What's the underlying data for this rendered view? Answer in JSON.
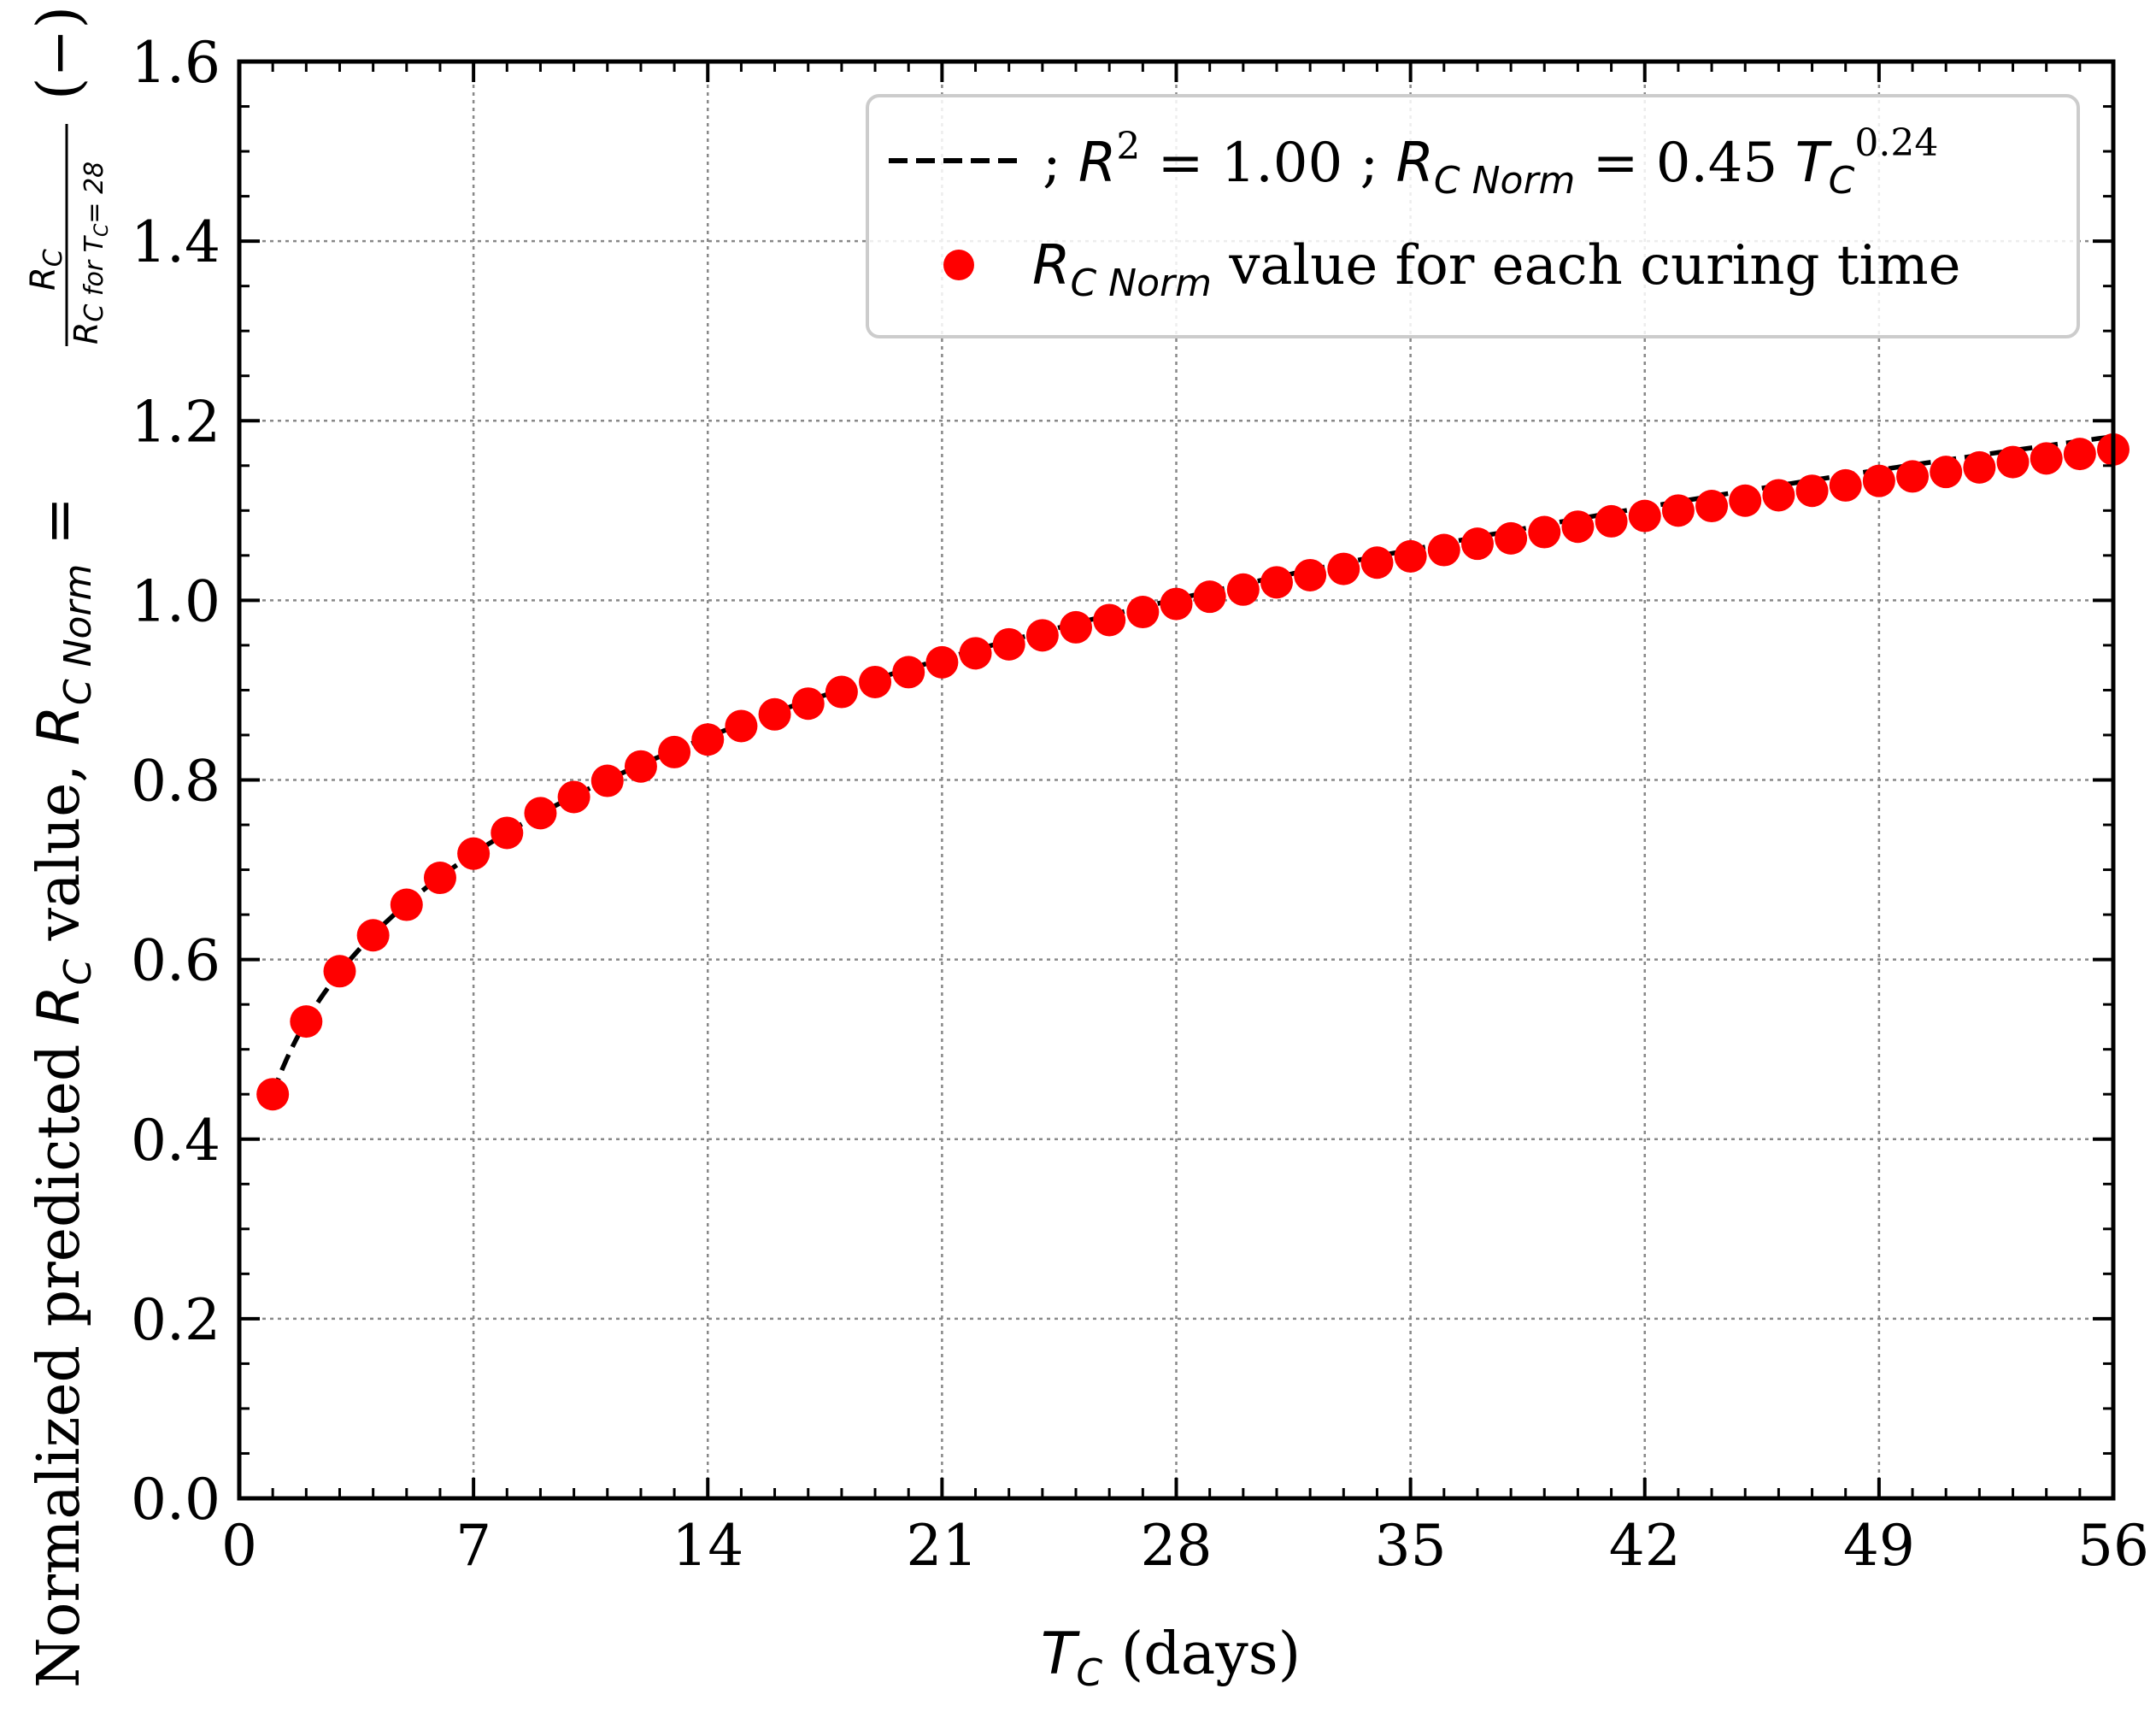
{
  "chart_data": {
    "type": "line+scatter",
    "xlabel": {
      "var": "T",
      "sub": "C",
      "unit": "(days)"
    },
    "ylabel": {
      "text": "Normalized predicted",
      "var": "R",
      "sub": "C",
      "mid": "value,",
      "norm_var": "R",
      "norm_sub": "C Norm",
      "equals": "=",
      "frac_num_var": "R",
      "frac_num_sub": "C",
      "frac_den": "R",
      "frac_den_sub": "C for T",
      "frac_den_sub2": "C",
      "frac_den_tail": "= 28",
      "unit": "(−)"
    },
    "xlim": [
      0,
      56
    ],
    "ylim": [
      0.0,
      1.6
    ],
    "x_ticks": [
      "0",
      "7",
      "14",
      "21",
      "28",
      "35",
      "42",
      "49",
      "56"
    ],
    "y_ticks": [
      "0.0",
      "0.2",
      "0.4",
      "0.6",
      "0.8",
      "1.0",
      "1.2",
      "1.4",
      "1.6"
    ],
    "grid": true,
    "fit": {
      "a": 0.45,
      "b": 0.24,
      "x_start": 1,
      "x_end": 56,
      "style": "dashed",
      "color": "#000000"
    },
    "points": {
      "x": [
        1,
        2,
        3,
        4,
        5,
        6,
        7,
        8,
        9,
        10,
        11,
        12,
        13,
        14,
        15,
        16,
        17,
        18,
        19,
        20,
        21,
        22,
        23,
        24,
        25,
        26,
        27,
        28,
        29,
        30,
        31,
        32,
        33,
        34,
        35,
        36,
        37,
        38,
        39,
        40,
        41,
        42,
        43,
        44,
        45,
        46,
        47,
        48,
        49,
        50,
        51,
        52,
        53,
        54,
        55,
        56
      ],
      "y": [
        0.45,
        0.531,
        0.587,
        0.627,
        0.661,
        0.691,
        0.718,
        0.741,
        0.763,
        0.781,
        0.799,
        0.815,
        0.831,
        0.845,
        0.86,
        0.873,
        0.885,
        0.898,
        0.909,
        0.92,
        0.931,
        0.941,
        0.951,
        0.961,
        0.97,
        0.978,
        0.987,
        0.996,
        1.004,
        1.012,
        1.02,
        1.028,
        1.035,
        1.042,
        1.049,
        1.056,
        1.063,
        1.069,
        1.076,
        1.082,
        1.088,
        1.094,
        1.1,
        1.105,
        1.111,
        1.117,
        1.122,
        1.128,
        1.133,
        1.138,
        1.143,
        1.148,
        1.154,
        1.158,
        1.163,
        1.168
      ],
      "color": "#ff0000"
    },
    "legend": {
      "position": "top-right",
      "entries": [
        {
          "kind": "line",
          "parts": {
            "sep1": "; ",
            "r": "R",
            "r_exp": "2",
            "r_val": " = 1.00 ; ",
            "rc": "R",
            "rc_sub": "C Norm",
            "eq": " = 0.45 ",
            "tc": "T",
            "tc_sub": "C",
            "tc_exp": "0.24"
          }
        },
        {
          "kind": "marker",
          "parts": {
            "rc": "R",
            "rc_sub": "C Norm",
            "text": " value for each curing time"
          }
        }
      ]
    }
  }
}
